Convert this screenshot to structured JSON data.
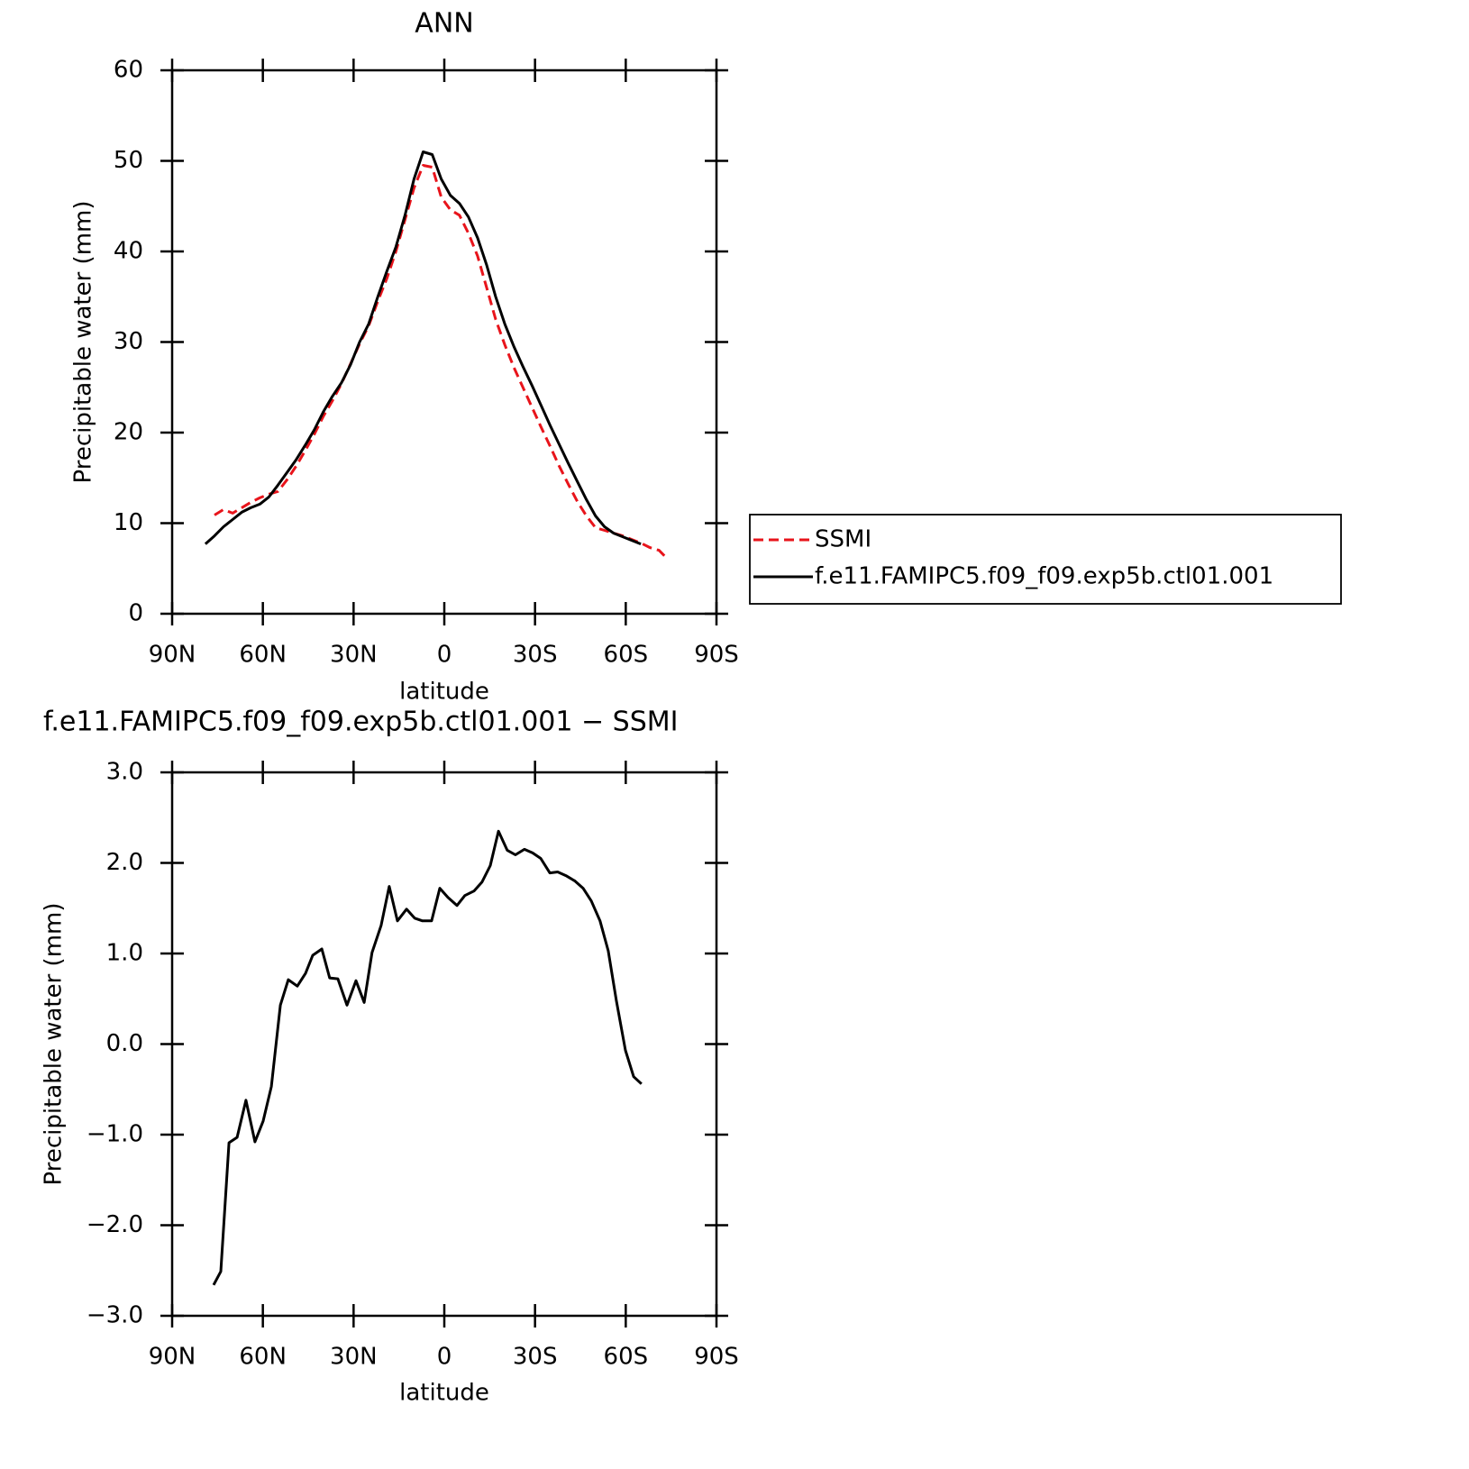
{
  "chart_data": [
    {
      "type": "line",
      "title": "ANN",
      "x_label": "latitude",
      "y_label": "Precipitable water (mm)",
      "x": [
        79,
        76,
        73,
        70,
        67,
        64,
        61,
        58,
        55,
        52,
        49,
        46,
        43,
        40,
        37,
        34,
        31,
        28,
        25,
        22,
        19,
        16,
        13,
        10,
        7,
        4,
        1,
        -2,
        -5,
        -8,
        -11,
        -14,
        -17,
        -20,
        -23,
        -26,
        -29,
        -32,
        -35,
        -38,
        -41,
        -44,
        -47,
        -50,
        -53,
        -56,
        -59,
        -62,
        -65,
        -68,
        -71,
        -74
      ],
      "xlim": [
        90,
        -90
      ],
      "xticks": [
        {
          "value": 90,
          "label": "90N"
        },
        {
          "value": 60,
          "label": "60N"
        },
        {
          "value": 30,
          "label": "30N"
        },
        0,
        {
          "value": -30,
          "label": "30S"
        },
        {
          "value": -60,
          "label": "60S"
        },
        {
          "value": -90,
          "label": "90S"
        }
      ],
      "ylim": [
        0,
        60
      ],
      "yticks": [
        0,
        10,
        20,
        30,
        40,
        50,
        60
      ],
      "legend": "right",
      "series": [
        {
          "name": "SSMI",
          "color": "#e8141b",
          "line_style": "dashed",
          "values": [
            null,
            10.9,
            11.5,
            11.1,
            11.7,
            12.3,
            12.8,
            13.2,
            13.5,
            14.8,
            16.3,
            18.0,
            19.8,
            21.8,
            23.5,
            25.4,
            27.6,
            29.8,
            31.8,
            34.5,
            37.0,
            40.0,
            43.5,
            47.0,
            49.5,
            49.3,
            46.0,
            44.6,
            44.0,
            42.0,
            39.5,
            36.0,
            32.5,
            29.7,
            27.2,
            25.0,
            22.8,
            20.6,
            18.5,
            16.3,
            14.3,
            12.4,
            10.8,
            9.5,
            9.2,
            8.9,
            8.6,
            8.2,
            7.8,
            7.3,
            7.0,
            6.0
          ]
        },
        {
          "name": "f.e11.FAMIPC5.f09_f09.exp5b.ctl01.001",
          "color": "#000000",
          "line_style": "solid",
          "values": [
            7.7,
            8.6,
            9.6,
            10.4,
            11.2,
            11.7,
            12.1,
            12.9,
            14.2,
            15.6,
            17.0,
            18.6,
            20.3,
            22.3,
            24.0,
            25.5,
            27.5,
            30.0,
            32.0,
            35.0,
            37.8,
            40.5,
            44.0,
            48.0,
            51.0,
            50.7,
            48.0,
            46.2,
            45.3,
            43.8,
            41.5,
            38.5,
            35.0,
            32.0,
            29.5,
            27.3,
            25.2,
            23.0,
            20.8,
            18.7,
            16.6,
            14.6,
            12.6,
            10.8,
            9.6,
            8.9,
            8.5,
            8.1,
            7.7,
            null,
            null,
            null
          ]
        }
      ]
    },
    {
      "type": "line",
      "title": "f.e11.FAMIPC5.f09_f09.exp5b.ctl01.001 − SSMI",
      "x_label": "latitude",
      "y_label": "Precipitable water (mm)",
      "x": [
        76.3,
        73.9,
        71.2,
        68.5,
        65.6,
        62.6,
        59.9,
        57.2,
        54.2,
        51.6,
        48.6,
        45.9,
        43.5,
        40.5,
        37.9,
        35.2,
        32.2,
        29.2,
        26.5,
        23.9,
        20.9,
        18.2,
        15.5,
        12.5,
        9.8,
        7.2,
        4.2,
        1.5,
        -1.2,
        -4.2,
        -6.8,
        -9.8,
        -12.5,
        -15.2,
        -17.9,
        -20.8,
        -23.5,
        -26.5,
        -29.2,
        -31.9,
        -34.9,
        -37.5,
        -40.2,
        -43.2,
        -45.9,
        -48.6,
        -51.5,
        -54.2,
        -56.9,
        -59.9,
        -62.6,
        -65.2
      ],
      "values": [
        -2.66,
        -2.51,
        -1.09,
        -1.03,
        -0.62,
        -1.08,
        -0.85,
        -0.47,
        0.43,
        0.71,
        0.64,
        0.78,
        0.98,
        1.05,
        0.73,
        0.72,
        0.43,
        0.7,
        0.46,
        1.01,
        1.31,
        1.74,
        1.36,
        1.49,
        1.39,
        1.36,
        1.36,
        1.72,
        1.62,
        1.53,
        1.64,
        1.69,
        1.79,
        1.97,
        2.35,
        2.14,
        2.09,
        2.15,
        2.11,
        2.05,
        1.89,
        1.9,
        1.86,
        1.8,
        1.72,
        1.58,
        1.36,
        1.03,
        0.48,
        -0.07,
        -0.36,
        -0.44
      ],
      "color": "#000000",
      "xlim": [
        90,
        -90
      ],
      "xticks": [
        {
          "value": 90,
          "label": "90N"
        },
        {
          "value": 60,
          "label": "60N"
        },
        {
          "value": 30,
          "label": "30N"
        },
        0,
        {
          "value": -30,
          "label": "30S"
        },
        {
          "value": -60,
          "label": "60S"
        },
        {
          "value": -90,
          "label": "90S"
        }
      ],
      "ylim": [
        -3,
        3
      ],
      "yticks": [
        {
          "value": -3,
          "label": "−3.0"
        },
        {
          "value": -2,
          "label": "−2.0"
        },
        {
          "value": -1,
          "label": "−1.0"
        },
        {
          "value": 0,
          "label": "0.0"
        },
        {
          "value": 1,
          "label": "1.0"
        },
        {
          "value": 2,
          "label": "2.0"
        },
        {
          "value": 3,
          "label": "3.0"
        }
      ]
    }
  ]
}
